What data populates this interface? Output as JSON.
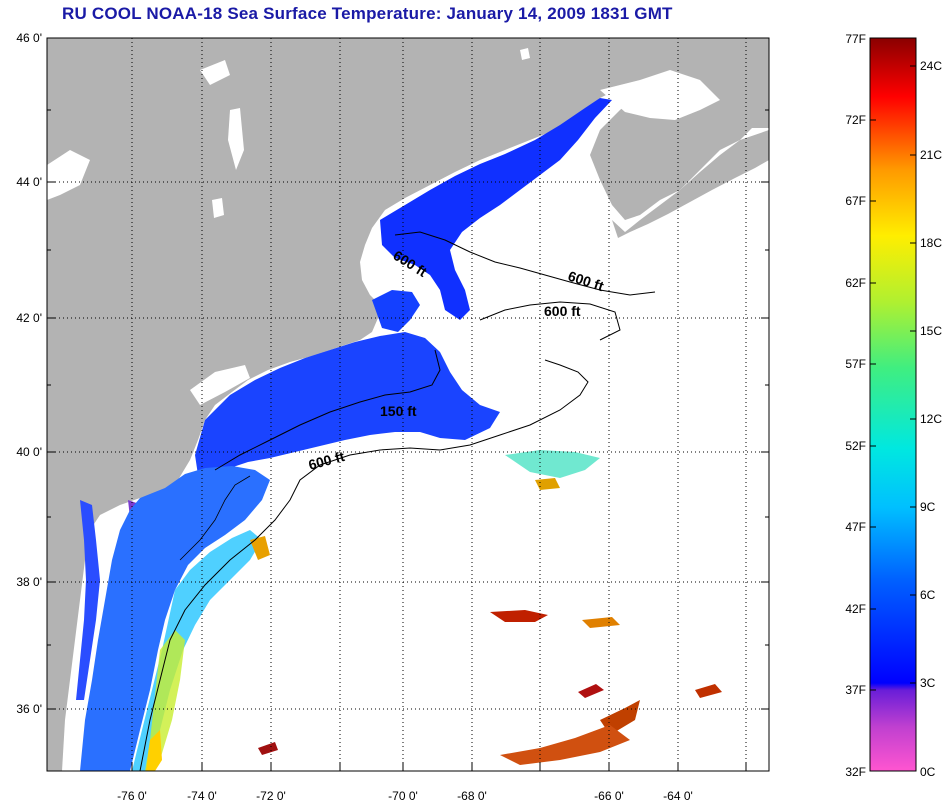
{
  "title": "RU COOL  NOAA-18  Sea Surface Temperature:  January 14, 2009 1831 GMT",
  "lat_ticks": [
    "46 0'",
    "44 0'",
    "42 0'",
    "40 0'",
    "38 0'",
    "36 0'"
  ],
  "lon_ticks": [
    "-76 0'",
    "-74 0'",
    "-72 0'",
    "-70 0'",
    "-68 0'",
    "-66 0'",
    "-64 0'"
  ],
  "contour_labels": [
    "600 ft",
    "600 ft",
    "600 ft",
    "150 ft",
    "600 ft"
  ],
  "colorbar": {
    "fahrenheit": [
      "77F",
      "72F",
      "67F",
      "62F",
      "57F",
      "52F",
      "47F",
      "42F",
      "37F",
      "32F"
    ],
    "celsius": [
      "24C",
      "21C",
      "18C",
      "15C",
      "12C",
      "9C",
      "6C",
      "3C",
      "0C"
    ]
  },
  "colors": {
    "land": "#b3b3b3",
    "title": "#1a1aa6",
    "no_data": "#ffffff"
  }
}
